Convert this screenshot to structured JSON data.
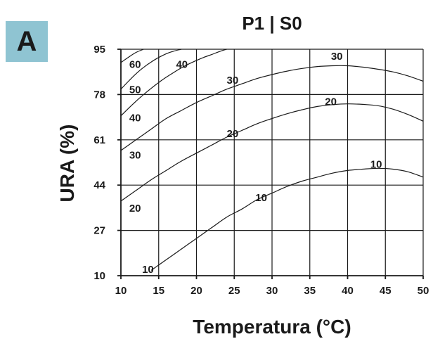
{
  "badge": {
    "label": "A",
    "color": "#8FC4D2"
  },
  "chart_data": {
    "type": "line",
    "title": "P1 | S0",
    "xlabel": "Temperatura (°C)",
    "ylabel": "URA (%)",
    "xlim": [
      10,
      50
    ],
    "ylim": [
      10,
      95
    ],
    "xticks": [
      10,
      15,
      20,
      25,
      30,
      35,
      40,
      45,
      50
    ],
    "yticks": [
      10,
      27,
      44,
      61,
      78,
      95
    ],
    "grid": true,
    "series": [
      {
        "name": "10",
        "x": [
          14,
          16,
          18,
          20,
          22,
          24,
          26,
          28,
          30,
          32,
          34,
          36,
          38,
          40,
          42,
          44,
          46,
          48,
          50
        ],
        "y": [
          12,
          16,
          20,
          24,
          28,
          32,
          35,
          38.5,
          41,
          43.5,
          45.5,
          47,
          48.5,
          49.5,
          50,
          50.3,
          50,
          49,
          47
        ]
      },
      {
        "name": "20",
        "x": [
          10,
          12,
          14,
          16,
          18,
          20,
          22,
          24,
          26,
          28,
          30,
          32,
          34,
          36,
          38,
          40,
          42,
          44,
          46,
          48,
          50
        ],
        "y": [
          38,
          42,
          46,
          49.5,
          53,
          56,
          59,
          62,
          64.5,
          67,
          69,
          70.8,
          72.3,
          73.5,
          74.2,
          74.5,
          74.3,
          73.8,
          72.5,
          70.5,
          68
        ]
      },
      {
        "name": "30",
        "x": [
          10,
          12,
          14,
          16,
          18,
          20,
          22,
          24,
          26,
          28,
          30,
          32,
          34,
          36,
          38,
          40,
          42,
          44,
          46,
          48,
          50
        ],
        "y": [
          57,
          61,
          65,
          69,
          72,
          75,
          77.5,
          80,
          82,
          84,
          85.5,
          86.8,
          87.8,
          88.5,
          88.8,
          88.8,
          88.3,
          87.5,
          86.5,
          85,
          83
        ]
      },
      {
        "name": "40",
        "x": [
          10,
          11,
          12,
          13,
          14,
          15,
          16,
          17,
          18,
          19,
          20,
          21,
          22,
          23,
          24
        ],
        "y": [
          70,
          72.8,
          75.5,
          78,
          80.3,
          82.5,
          84.5,
          86.3,
          88,
          89.5,
          90.8,
          92,
          93,
          94.1,
          95
        ]
      },
      {
        "name": "50",
        "x": [
          10,
          11,
          12,
          13,
          14,
          15,
          16,
          17,
          18
        ],
        "y": [
          80,
          83,
          85.8,
          88.2,
          90.2,
          91.9,
          93.3,
          94.3,
          95
        ]
      },
      {
        "name": "60",
        "x": [
          10,
          11,
          12,
          13
        ],
        "y": [
          90,
          92,
          93.8,
          95
        ]
      }
    ],
    "curve_labels": [
      {
        "text": "10",
        "x": 12.8,
        "y": 11
      },
      {
        "text": "10",
        "x": 27.8,
        "y": 38
      },
      {
        "text": "10",
        "x": 43.0,
        "y": 50.5
      },
      {
        "text": "20",
        "x": 11.1,
        "y": 34
      },
      {
        "text": "20",
        "x": 24.0,
        "y": 62
      },
      {
        "text": "20",
        "x": 37.0,
        "y": 74
      },
      {
        "text": "30",
        "x": 11.1,
        "y": 54
      },
      {
        "text": "30",
        "x": 24.0,
        "y": 82
      },
      {
        "text": "30",
        "x": 37.8,
        "y": 91
      },
      {
        "text": "40",
        "x": 11.1,
        "y": 68
      },
      {
        "text": "40",
        "x": 17.3,
        "y": 88
      },
      {
        "text": "50",
        "x": 11.1,
        "y": 78.5
      },
      {
        "text": "60",
        "x": 11.1,
        "y": 88
      }
    ]
  }
}
